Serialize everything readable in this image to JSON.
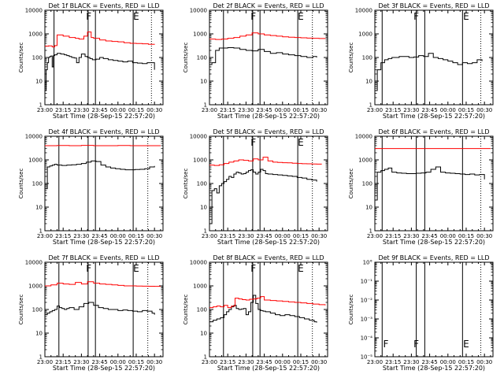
{
  "figure": {
    "xlabel": "Start Time (28-Sep-15 22:57:20)",
    "ylabel": "Counts/sec",
    "x_tick_labels": [
      "23:00",
      "23:15",
      "23:30",
      "23:45",
      "00:00",
      "00:15",
      "00:30"
    ],
    "log_tick_labels": [
      "1",
      "10",
      "100",
      "1000",
      "10000"
    ],
    "det9_tick_labels": [
      "10°",
      "10⁻¹",
      "10⁻²",
      "10⁻³",
      "10⁻⁴",
      "10⁻⁵"
    ],
    "marker_letter": "F",
    "marker_letter_e": "E",
    "colors": {
      "events": "#000000",
      "lld": "#ff0000",
      "frame": "#000000"
    }
  },
  "chart_data": [
    {
      "type": "line",
      "title": "Det 1f BLACK = Events, RED = LLD",
      "x_unit": "minutes after 23:00",
      "x_range": [
        0,
        97
      ],
      "yscale": "log",
      "ylim": [
        1,
        10000
      ],
      "series": [
        {
          "name": "Events",
          "color": "#000000",
          "x": [
            0,
            1,
            2,
            3,
            4,
            5,
            6,
            7,
            8,
            10,
            13,
            16,
            18,
            20,
            22,
            24,
            26,
            28,
            30,
            33,
            35,
            37,
            39,
            42,
            45,
            48,
            52,
            56,
            60,
            64,
            68,
            72,
            76,
            80,
            84,
            88,
            90
          ],
          "y": [
            4,
            30,
            60,
            100,
            110,
            115,
            40,
            120,
            130,
            150,
            140,
            130,
            120,
            110,
            100,
            95,
            60,
            100,
            140,
            110,
            100,
            90,
            80,
            85,
            100,
            90,
            80,
            75,
            70,
            65,
            70,
            60,
            58,
            55,
            60,
            60,
            30
          ]
        },
        {
          "name": "LLD",
          "color": "#ff0000",
          "x": [
            0,
            3,
            6,
            8,
            10,
            15,
            20,
            25,
            28,
            32,
            35,
            38,
            40,
            45,
            50,
            55,
            60,
            65,
            70,
            75,
            80,
            85,
            90
          ],
          "y": [
            300,
            310,
            280,
            320,
            900,
            800,
            700,
            650,
            600,
            800,
            1200,
            700,
            650,
            550,
            500,
            480,
            460,
            420,
            400,
            390,
            380,
            360,
            350
          ]
        }
      ],
      "vlines_solid": [
        7.5,
        35.5,
        41.5,
        72.5
      ],
      "vlines_dotted": [
        87.5
      ],
      "markers": [
        {
          "x": 36,
          "label": "F"
        },
        {
          "x": 75,
          "label": "E"
        }
      ]
    },
    {
      "type": "line",
      "title": "Det 2f BLACK = Events, RED = LLD",
      "x_unit": "minutes after 23:00",
      "x_range": [
        0,
        97
      ],
      "yscale": "log",
      "ylim": [
        1,
        10000
      ],
      "series": [
        {
          "name": "Events",
          "color": "#000000",
          "x": [
            0,
            2,
            5,
            8,
            11,
            15,
            20,
            25,
            30,
            35,
            40,
            45,
            50,
            55,
            60,
            65,
            70,
            75,
            80,
            85,
            88
          ],
          "y": [
            50,
            60,
            200,
            250,
            250,
            260,
            250,
            220,
            200,
            190,
            220,
            180,
            150,
            160,
            140,
            130,
            120,
            110,
            100,
            110,
            100
          ]
        },
        {
          "name": "LLD",
          "color": "#ff0000",
          "x": [
            0,
            5,
            10,
            15,
            20,
            25,
            30,
            35,
            40,
            45,
            50,
            55,
            60,
            65,
            70,
            75,
            80,
            85,
            90,
            95
          ],
          "y": [
            600,
            580,
            600,
            650,
            700,
            800,
            900,
            1100,
            1000,
            900,
            850,
            800,
            750,
            720,
            700,
            680,
            660,
            650,
            640,
            620
          ]
        }
      ],
      "vlines_solid": [
        11.5,
        35.5,
        41.5,
        72.5
      ],
      "vlines_dotted": [
        84.5
      ],
      "markers": [
        {
          "x": 36,
          "label": "F"
        },
        {
          "x": 75,
          "label": "E"
        }
      ]
    },
    {
      "type": "line",
      "title": "Det 3f BLACK = Events, RED = LLD",
      "x_unit": "minutes after 23:00",
      "x_range": [
        0,
        97
      ],
      "yscale": "log",
      "ylim": [
        1,
        10000
      ],
      "series": [
        {
          "name": "Events",
          "color": "#000000",
          "x": [
            0,
            2,
            5,
            8,
            11,
            14,
            17,
            20,
            24,
            28,
            32,
            36,
            40,
            44,
            48,
            52,
            56,
            60,
            64,
            68,
            72,
            76,
            80,
            84,
            88
          ],
          "y": [
            4,
            30,
            60,
            80,
            90,
            100,
            100,
            110,
            110,
            100,
            105,
            120,
            110,
            150,
            100,
            90,
            80,
            70,
            60,
            50,
            60,
            55,
            60,
            80,
            70
          ]
        }
      ],
      "vlines_solid": [
        6,
        34,
        41,
        72
      ],
      "vlines_dotted": [
        87
      ],
      "markers": [
        {
          "x": 34,
          "label": "F"
        },
        {
          "x": 75,
          "label": "E"
        }
      ]
    },
    {
      "type": "line",
      "title": "Det 4f BLACK = Events, RED = LLD",
      "x_unit": "minutes after 23:00",
      "x_range": [
        0,
        97
      ],
      "yscale": "log",
      "ylim": [
        1,
        10000
      ],
      "series": [
        {
          "name": "Events",
          "color": "#000000",
          "x": [
            0,
            2,
            4,
            6,
            8,
            10,
            14,
            18,
            22,
            26,
            30,
            34,
            38,
            42,
            46,
            50,
            54,
            58,
            62,
            66,
            70,
            74,
            78,
            82,
            86,
            90
          ],
          "y": [
            60,
            500,
            550,
            600,
            650,
            600,
            580,
            600,
            620,
            650,
            700,
            800,
            900,
            850,
            600,
            500,
            450,
            420,
            400,
            380,
            380,
            390,
            400,
            420,
            500,
            550
          ]
        },
        {
          "name": "LLD",
          "color": "#ff0000",
          "x": [
            0,
            10,
            20,
            30,
            40,
            50,
            60,
            70,
            80,
            90,
            95
          ],
          "y": [
            4000,
            4050,
            4000,
            4100,
            4000,
            4000,
            4050,
            4000,
            4000,
            4000,
            4000
          ]
        }
      ],
      "vlines_solid": [
        11.5,
        35.5,
        41.5,
        72.5
      ],
      "vlines_dotted": [
        84.5
      ],
      "markers": []
    },
    {
      "type": "line",
      "title": "Det 5f BLACK = Events, RED = LLD",
      "x_unit": "minutes after 23:00",
      "x_range": [
        0,
        97
      ],
      "yscale": "log",
      "ylim": [
        1,
        10000
      ],
      "series": [
        {
          "name": "Events",
          "color": "#000000",
          "x": [
            0,
            2,
            4,
            6,
            8,
            10,
            12,
            14,
            16,
            18,
            20,
            22,
            24,
            26,
            28,
            30,
            32,
            34,
            36,
            38,
            40,
            42,
            44,
            46,
            48,
            52,
            56,
            60,
            64,
            68,
            72,
            76,
            80,
            84,
            88
          ],
          "y": [
            2,
            50,
            60,
            40,
            80,
            100,
            120,
            150,
            200,
            180,
            250,
            300,
            280,
            250,
            260,
            300,
            350,
            380,
            300,
            250,
            300,
            400,
            350,
            260,
            250,
            240,
            230,
            220,
            210,
            200,
            180,
            170,
            150,
            140,
            120
          ]
        },
        {
          "name": "LLD",
          "color": "#ff0000",
          "x": [
            0,
            4,
            8,
            12,
            16,
            20,
            24,
            28,
            32,
            36,
            40,
            44,
            48,
            52,
            56,
            60,
            64,
            68,
            72,
            76,
            80,
            84,
            88,
            92
          ],
          "y": [
            600,
            580,
            620,
            700,
            800,
            900,
            1000,
            950,
            900,
            1100,
            1000,
            1300,
            900,
            800,
            780,
            760,
            750,
            720,
            700,
            690,
            680,
            670,
            660,
            650
          ]
        }
      ],
      "vlines_solid": [
        11.5,
        35.5,
        41.5,
        72.5
      ],
      "vlines_dotted": [
        84.5
      ],
      "markers": [
        {
          "x": 36,
          "label": "F"
        },
        {
          "x": 75,
          "label": "E"
        }
      ]
    },
    {
      "type": "line",
      "title": "Det 6f BLACK = Events, RED = LLD",
      "x_unit": "minutes after 23:00",
      "x_range": [
        0,
        97
      ],
      "yscale": "log",
      "ylim": [
        1,
        10000
      ],
      "series": [
        {
          "name": "Events",
          "color": "#000000",
          "x": [
            0,
            2,
            5,
            8,
            11,
            14,
            18,
            22,
            26,
            30,
            34,
            38,
            42,
            46,
            50,
            54,
            58,
            62,
            66,
            70,
            74,
            78,
            82,
            86,
            90
          ],
          "y": [
            20,
            300,
            350,
            400,
            450,
            300,
            280,
            270,
            260,
            260,
            270,
            280,
            300,
            400,
            500,
            300,
            280,
            270,
            260,
            250,
            240,
            250,
            230,
            240,
            150
          ]
        },
        {
          "name": "LLD",
          "color": "#ff0000",
          "x": [
            0,
            15,
            30,
            45,
            60,
            75,
            90,
            95
          ],
          "y": [
            3000,
            3000,
            3000,
            3000,
            3000,
            3000,
            3000,
            3000
          ]
        }
      ],
      "vlines_solid": [
        6,
        34,
        41,
        72
      ],
      "vlines_dotted": [
        87
      ],
      "markers": []
    },
    {
      "type": "line",
      "title": "Det 7f BLACK = Events, RED = LLD",
      "x_unit": "minutes after 23:00",
      "x_range": [
        0,
        97
      ],
      "yscale": "log",
      "ylim": [
        1,
        10000
      ],
      "series": [
        {
          "name": "Events",
          "color": "#000000",
          "x": [
            0,
            2,
            4,
            6,
            8,
            10,
            12,
            14,
            16,
            18,
            20,
            24,
            28,
            32,
            36,
            40,
            44,
            48,
            52,
            56,
            60,
            64,
            68,
            72,
            76,
            80,
            84,
            88,
            90
          ],
          "y": [
            60,
            70,
            80,
            90,
            100,
            140,
            120,
            110,
            100,
            110,
            120,
            100,
            130,
            180,
            200,
            150,
            120,
            110,
            100,
            100,
            90,
            95,
            90,
            85,
            80,
            90,
            85,
            70,
            60
          ]
        },
        {
          "name": "LLD",
          "color": "#ff0000",
          "x": [
            0,
            5,
            10,
            15,
            20,
            25,
            30,
            35,
            40,
            45,
            50,
            55,
            60,
            65,
            70,
            75,
            80,
            85,
            90,
            95
          ],
          "y": [
            1000,
            1100,
            1300,
            1200,
            1150,
            1400,
            1200,
            1500,
            1300,
            1200,
            1150,
            1100,
            1050,
            1000,
            1000,
            980,
            970,
            960,
            950,
            950
          ]
        }
      ],
      "vlines_solid": [
        11.5,
        35.5,
        41.5,
        72.5
      ],
      "vlines_dotted": [
        84.5
      ],
      "markers": [
        {
          "x": 36,
          "label": "F"
        },
        {
          "x": 75,
          "label": "E"
        }
      ]
    },
    {
      "type": "line",
      "title": "Det 8f BLACK = Events, RED = LLD",
      "x_unit": "minutes after 23:00",
      "x_range": [
        0,
        97
      ],
      "yscale": "log",
      "ylim": [
        1,
        10000
      ],
      "series": [
        {
          "name": "Events",
          "color": "#000000",
          "x": [
            0,
            3,
            6,
            9,
            12,
            14,
            16,
            18,
            20,
            22,
            24,
            26,
            28,
            30,
            32,
            34,
            36,
            38,
            40,
            42,
            44,
            46,
            50,
            54,
            58,
            62,
            66,
            70,
            74,
            78,
            82,
            86,
            88
          ],
          "y": [
            30,
            35,
            40,
            45,
            60,
            80,
            100,
            130,
            150,
            110,
            100,
            105,
            110,
            60,
            80,
            200,
            400,
            180,
            100,
            90,
            85,
            80,
            70,
            60,
            55,
            60,
            55,
            50,
            45,
            40,
            35,
            30,
            28
          ]
        },
        {
          "name": "LLD",
          "color": "#ff0000",
          "x": [
            0,
            3,
            6,
            9,
            12,
            15,
            18,
            21,
            24,
            27,
            30,
            33,
            36,
            39,
            42,
            45,
            50,
            55,
            60,
            65,
            70,
            75,
            80,
            85,
            90,
            95
          ],
          "y": [
            120,
            130,
            140,
            130,
            150,
            120,
            140,
            300,
            280,
            260,
            250,
            270,
            280,
            300,
            350,
            250,
            240,
            230,
            220,
            210,
            200,
            190,
            180,
            170,
            160,
            150
          ]
        }
      ],
      "vlines_solid": [
        11.5,
        35.5,
        41.5,
        72.5
      ],
      "vlines_dotted": [
        84.5
      ],
      "markers": [
        {
          "x": 36,
          "label": "F"
        },
        {
          "x": 75,
          "label": "E"
        }
      ]
    },
    {
      "type": "line",
      "title": "Det 9f BLACK = Events, RED = LLD",
      "x_unit": "minutes after 23:00",
      "x_range": [
        0,
        97
      ],
      "yscale": "log",
      "ylim": [
        1e-05,
        1
      ],
      "series": [],
      "vlines_solid": [
        6,
        34,
        41,
        72
      ],
      "vlines_dotted": [
        87
      ],
      "markers": [
        {
          "x": 9,
          "label": "F"
        },
        {
          "x": 34,
          "label": "F"
        },
        {
          "x": 75,
          "label": "E"
        }
      ]
    }
  ]
}
